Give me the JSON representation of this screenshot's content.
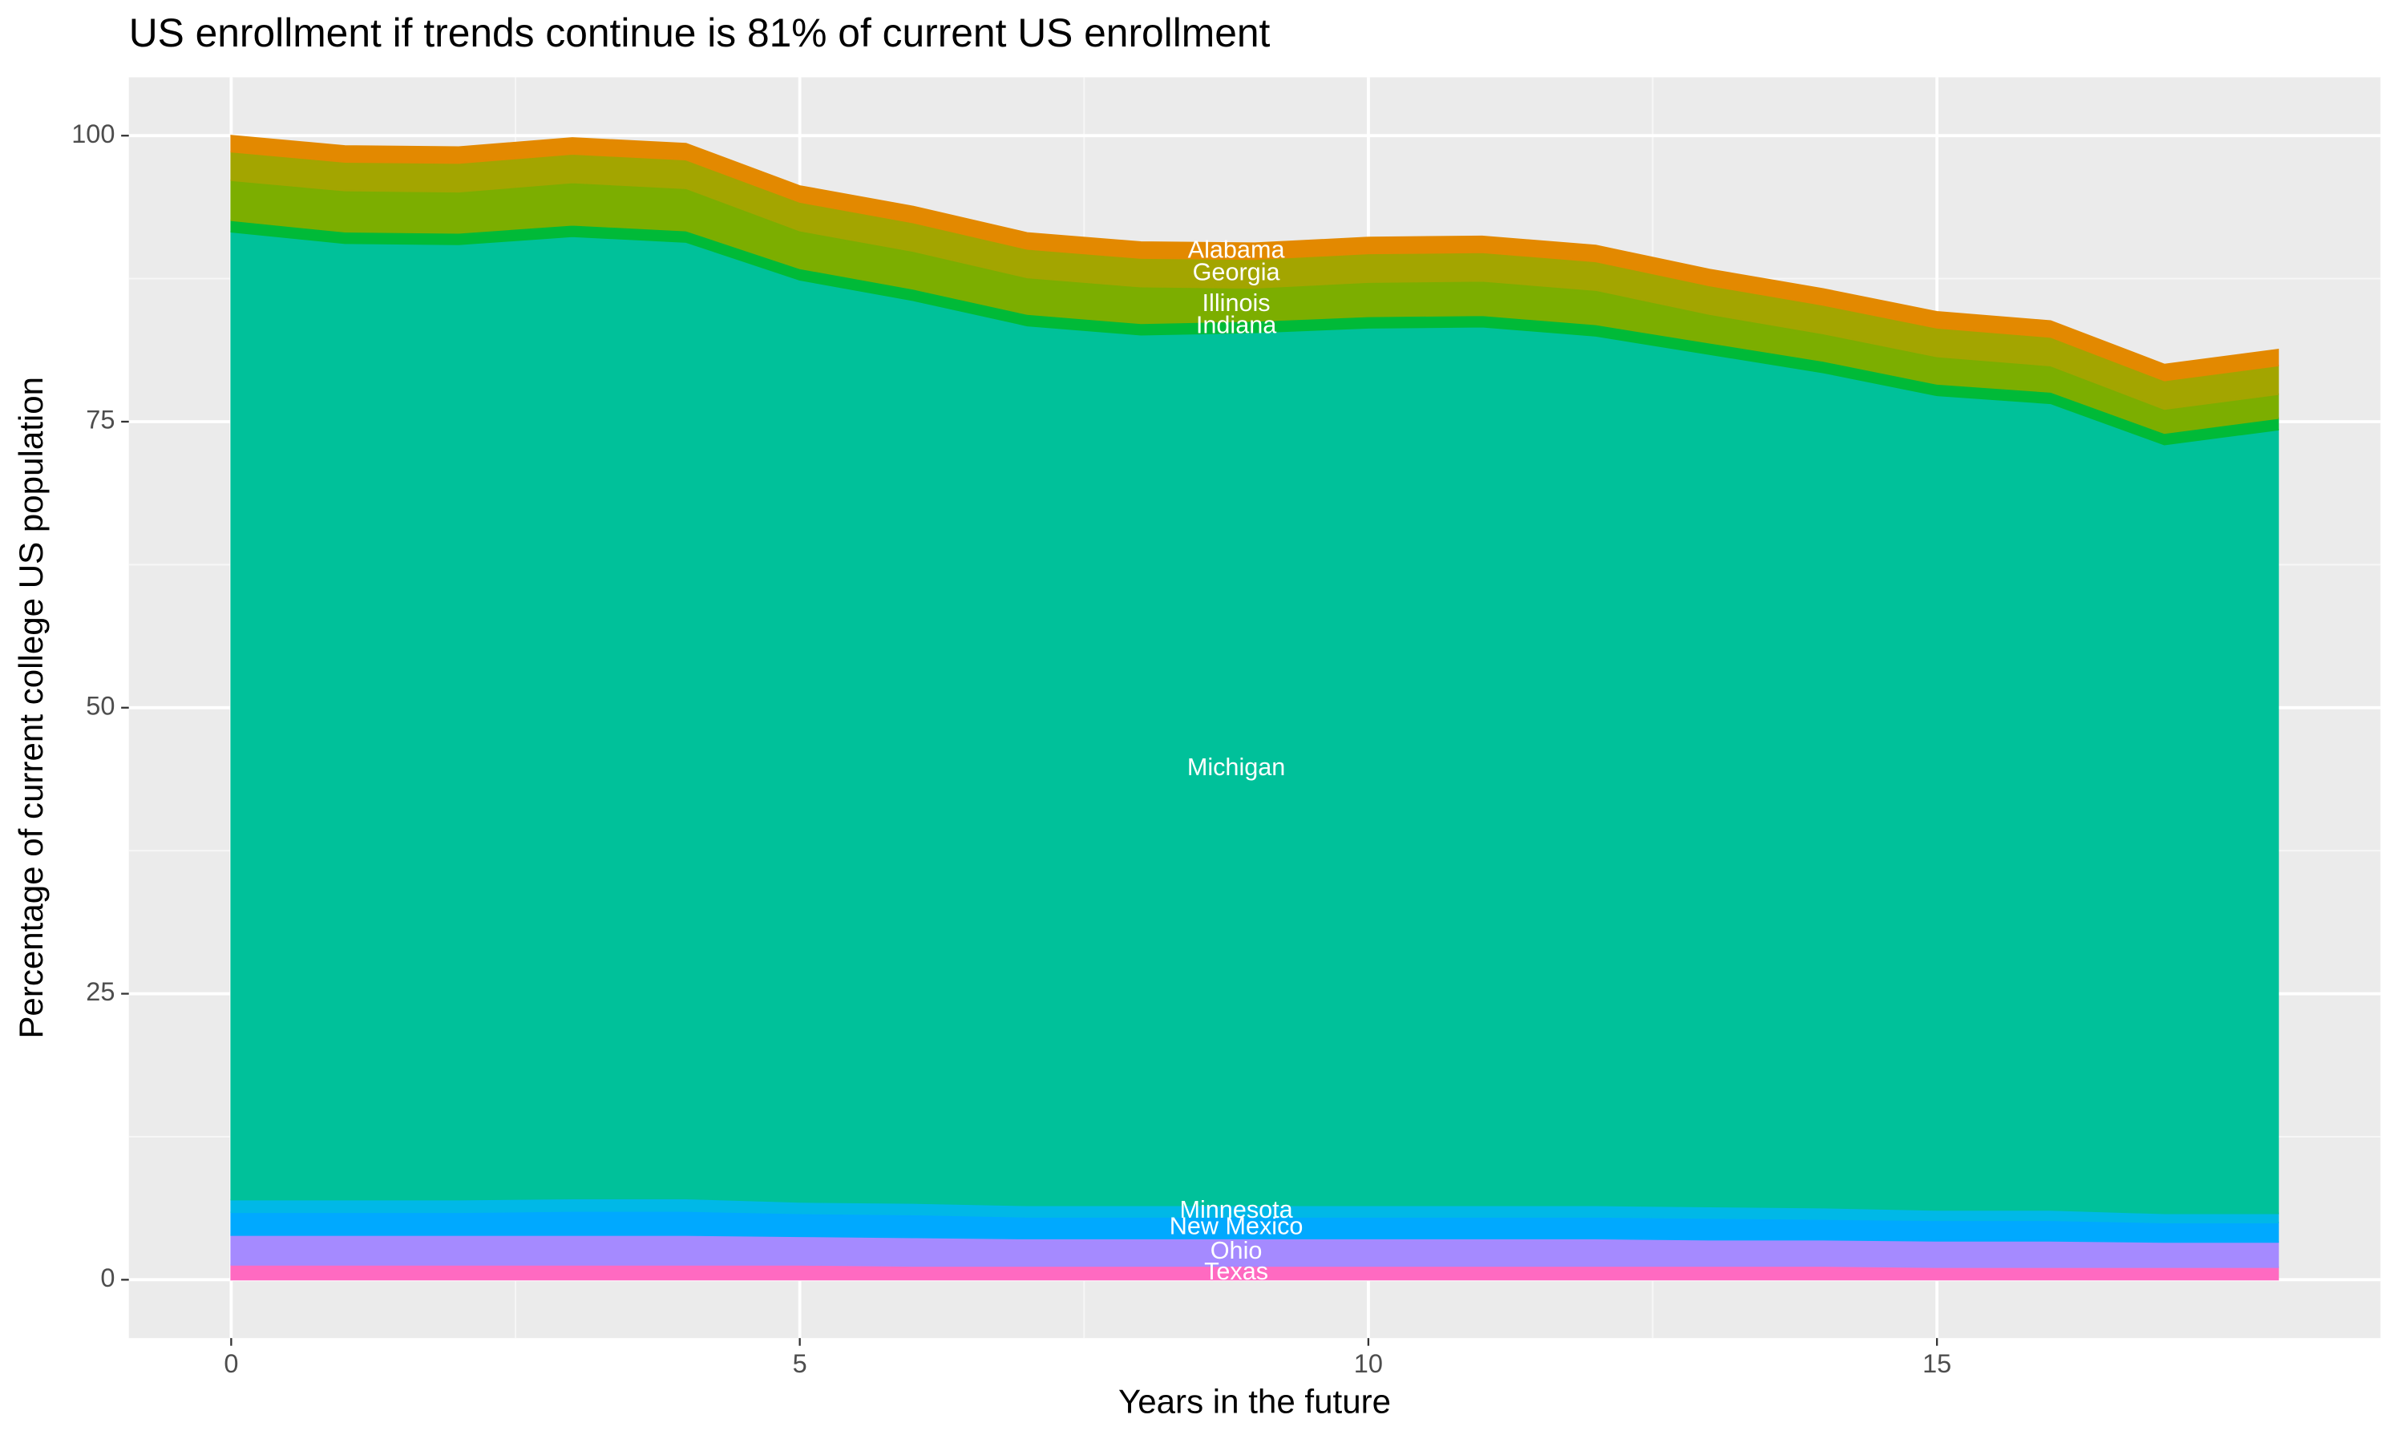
{
  "chart_data": {
    "type": "stacked-area",
    "title": "US enrollment if trends continue is 81% of current US enrollment",
    "x_label": "Years in the future",
    "y_label": "Percentage of current college US population",
    "x": [
      0,
      1,
      2,
      3,
      4,
      5,
      6,
      7,
      8,
      9,
      10,
      11,
      12,
      13,
      14,
      15,
      16,
      17,
      18
    ],
    "xlim": [
      -0.9,
      18.9
    ],
    "xticks": [
      0,
      5,
      10,
      15
    ],
    "ylim": [
      -5.1,
      105.1
    ],
    "yticks": [
      0,
      25,
      50,
      75,
      100
    ],
    "grid": true,
    "series": [
      {
        "name": "Texas",
        "color": "#ff6ac1",
        "values": [
          1.3,
          1.3,
          1.3,
          1.3,
          1.3,
          1.3,
          1.2,
          1.2,
          1.2,
          1.2,
          1.2,
          1.2,
          1.2,
          1.2,
          1.2,
          1.1,
          1.1,
          1.1,
          1.1
        ]
      },
      {
        "name": "Ohio",
        "color": "#a58aff",
        "values": [
          2.6,
          2.6,
          2.6,
          2.6,
          2.6,
          2.5,
          2.5,
          2.4,
          2.4,
          2.4,
          2.4,
          2.4,
          2.4,
          2.3,
          2.3,
          2.3,
          2.3,
          2.2,
          2.2
        ]
      },
      {
        "name": "New Mexico",
        "color": "#00a9ff",
        "values": [
          2.0,
          2.0,
          2.0,
          2.1,
          2.1,
          2.0,
          2.0,
          1.9,
          1.9,
          1.9,
          1.9,
          1.9,
          1.9,
          1.9,
          1.8,
          1.8,
          1.8,
          1.7,
          1.7
        ]
      },
      {
        "name": "Minnesota",
        "color": "#00b8e7",
        "values": [
          1.1,
          1.1,
          1.1,
          1.1,
          1.1,
          1.0,
          1.0,
          1.0,
          1.0,
          1.0,
          1.0,
          1.0,
          1.0,
          1.0,
          1.0,
          0.9,
          0.9,
          0.8,
          0.8
        ]
      },
      {
        "name": "Michigan",
        "color": "#00c19a",
        "values": [
          84.6,
          83.6,
          83.5,
          84.1,
          83.6,
          80.6,
          78.9,
          76.9,
          76.1,
          76.3,
          76.7,
          76.8,
          76.0,
          74.5,
          73.0,
          71.2,
          70.5,
          67.2,
          68.5
        ]
      },
      {
        "name": "Indiana",
        "color": "#00ba38",
        "values": [
          1.0,
          1.0,
          1.0,
          1.0,
          1.0,
          1.0,
          1.0,
          1.0,
          1.0,
          1.0,
          1.0,
          1.0,
          1.0,
          1.0,
          1.0,
          1.0,
          1.0,
          1.0,
          1.0
        ]
      },
      {
        "name": "Illinois",
        "color": "#7cae00",
        "values": [
          3.5,
          3.6,
          3.6,
          3.7,
          3.7,
          3.3,
          3.3,
          3.2,
          3.2,
          2.9,
          3.0,
          3.0,
          3.0,
          2.5,
          2.4,
          2.4,
          2.3,
          2.1,
          2.1
        ]
      },
      {
        "name": "Georgia",
        "color": "#a3a500",
        "values": [
          2.5,
          2.5,
          2.5,
          2.5,
          2.5,
          2.5,
          2.5,
          2.5,
          2.5,
          2.5,
          2.5,
          2.5,
          2.5,
          2.5,
          2.5,
          2.5,
          2.5,
          2.5,
          2.5
        ]
      },
      {
        "name": "Alabama",
        "color": "#e38900",
        "values": [
          1.4,
          1.4,
          1.4,
          1.4,
          1.4,
          1.4,
          1.4,
          1.4,
          1.4,
          1.4,
          1.4,
          1.4,
          1.4,
          1.4,
          1.4,
          1.4,
          1.4,
          1.4,
          1.4
        ]
      }
    ]
  }
}
